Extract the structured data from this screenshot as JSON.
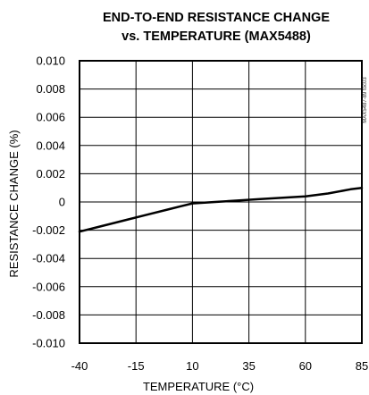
{
  "chart_data": {
    "type": "line",
    "title_line1": "END-TO-END RESISTANCE CHANGE",
    "title_line2": "vs. TEMPERATURE (MAX5488)",
    "xlabel": "TEMPERATURE (°C)",
    "ylabel": "RESISTANCE CHANGE (%)",
    "side_note": "MAX5487-89 toc03",
    "xlim": [
      -40,
      85
    ],
    "ylim": [
      -0.01,
      0.01
    ],
    "x_ticks": [
      -40,
      -15,
      10,
      35,
      60,
      85
    ],
    "x_tick_labels": [
      "-40",
      "-15",
      "10",
      "35",
      "60",
      "85"
    ],
    "y_ticks": [
      -0.01,
      -0.008,
      -0.006,
      -0.004,
      -0.002,
      0,
      0.002,
      0.004,
      0.006,
      0.008,
      0.01
    ],
    "y_tick_labels": [
      "-0.010",
      "-0.008",
      "-0.006",
      "-0.004",
      "-0.002",
      "0",
      "0.002",
      "0.004",
      "0.006",
      "0.008",
      "0.010"
    ],
    "grid": true,
    "series": [
      {
        "x": [
          -40,
          -30,
          -20,
          -10,
          0,
          5,
          10,
          20,
          30,
          40,
          50,
          60,
          65,
          70,
          80,
          85
        ],
        "y": [
          -0.0021,
          -0.0017,
          -0.0013,
          -0.0009,
          -0.0005,
          -0.0003,
          -0.0001,
          0.0,
          0.0001,
          0.0002,
          0.0003,
          0.0004,
          0.0005,
          0.0006,
          0.0009,
          0.001
        ]
      }
    ]
  }
}
